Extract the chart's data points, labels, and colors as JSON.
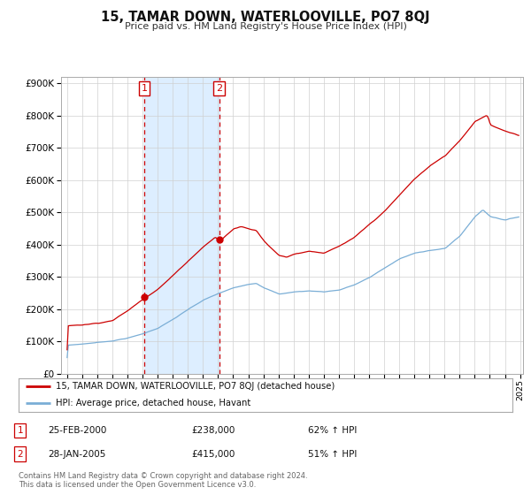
{
  "title": "15, TAMAR DOWN, WATERLOOVILLE, PO7 8QJ",
  "subtitle": "Price paid vs. HM Land Registry's House Price Index (HPI)",
  "hpi_label": "HPI: Average price, detached house, Havant",
  "property_label": "15, TAMAR DOWN, WATERLOOVILLE, PO7 8QJ (detached house)",
  "sale1_date": "25-FEB-2000",
  "sale1_price": 238000,
  "sale1_hpi": "62% ↑ HPI",
  "sale2_date": "28-JAN-2005",
  "sale2_price": 415000,
  "sale2_hpi": "51% ↑ HPI",
  "sale1_year": 2000.12,
  "sale2_year": 2005.07,
  "line_color_property": "#cc0000",
  "line_color_hpi": "#7aaed6",
  "shade_color": "#ddeeff",
  "copyright_text": "Contains HM Land Registry data © Crown copyright and database right 2024.\nThis data is licensed under the Open Government Licence v3.0.",
  "background_color": "#ffffff",
  "plot_bg_color": "#ffffff",
  "grid_color": "#d0d0d0"
}
